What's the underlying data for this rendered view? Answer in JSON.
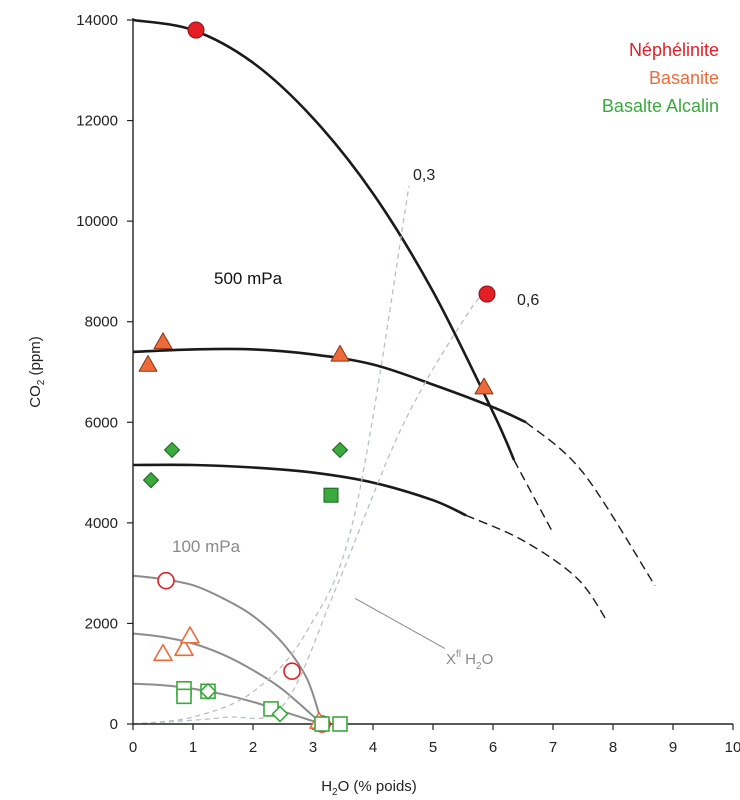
{
  "chart_data": {
    "type": "scatter",
    "xlabel_main": "H",
    "xlabel_sub": "2",
    "xlabel_rest": "O (% poids)",
    "ylabel_main": "CO",
    "ylabel_sub": "2",
    "ylabel_rest": " (ppm)",
    "xlim": [
      0,
      10
    ],
    "ylim": [
      0,
      14000
    ],
    "x_ticks": [
      0,
      1,
      2,
      3,
      4,
      5,
      6,
      7,
      8,
      9,
      10
    ],
    "y_ticks": [
      0,
      2000,
      4000,
      6000,
      8000,
      10000,
      12000,
      14000
    ],
    "grid": false,
    "legend_position": "top-right",
    "legend": [
      {
        "name": "Néphélinite",
        "color": "#e31e24"
      },
      {
        "name": "Basanite",
        "color": "#ef6a3a"
      },
      {
        "name": "Basalte Alcalin",
        "color": "#3aaa3c"
      }
    ],
    "annotations": {
      "pressure_high": "500 mPa",
      "pressure_low": "100 mPa",
      "xh2o_03": "0,3",
      "xh2o_06": "0,6",
      "xh2o_label_main": "X",
      "xh2o_label_sup": "fl",
      "xh2o_label_rest": " H",
      "xh2o_label_sub": "2",
      "xh2o_label_end": "O"
    },
    "isobars_500mPa": [
      {
        "solid": [
          [
            0,
            14000
          ],
          [
            1,
            13800
          ],
          [
            2,
            13150
          ],
          [
            3,
            12050
          ],
          [
            4,
            10550
          ],
          [
            5,
            8600
          ],
          [
            6,
            6200
          ],
          [
            6.35,
            5250
          ]
        ],
        "dashed": [
          [
            6.35,
            5250
          ],
          [
            7.0,
            3800
          ]
        ]
      },
      {
        "solid": [
          [
            0,
            7400
          ],
          [
            1,
            7450
          ],
          [
            2,
            7450
          ],
          [
            3,
            7350
          ],
          [
            4,
            7150
          ],
          [
            5,
            6750
          ],
          [
            6,
            6300
          ],
          [
            6.55,
            6000
          ]
        ],
        "dashed": [
          [
            6.55,
            6000
          ],
          [
            7.5,
            5000
          ],
          [
            8.7,
            2750
          ]
        ]
      },
      {
        "solid": [
          [
            0,
            5150
          ],
          [
            1,
            5150
          ],
          [
            2,
            5100
          ],
          [
            3,
            5000
          ],
          [
            4,
            4800
          ],
          [
            5,
            4450
          ],
          [
            5.55,
            4150
          ]
        ],
        "dashed": [
          [
            5.55,
            4150
          ],
          [
            6.5,
            3650
          ],
          [
            7.4,
            2900
          ],
          [
            7.9,
            2050
          ]
        ]
      }
    ],
    "isobars_100mPa": [
      [
        [
          0,
          2950
        ],
        [
          0.5,
          2880
        ],
        [
          1,
          2760
        ],
        [
          1.5,
          2500
        ],
        [
          2,
          2150
        ],
        [
          2.5,
          1600
        ],
        [
          2.9,
          900
        ],
        [
          3.15,
          0
        ]
      ],
      [
        [
          0,
          1800
        ],
        [
          0.5,
          1730
        ],
        [
          1,
          1600
        ],
        [
          1.5,
          1380
        ],
        [
          2,
          1070
        ],
        [
          2.5,
          680
        ],
        [
          3.15,
          0
        ]
      ],
      [
        [
          0,
          800
        ],
        [
          0.5,
          770
        ],
        [
          1,
          700
        ],
        [
          1.5,
          590
        ],
        [
          2,
          440
        ],
        [
          2.5,
          250
        ],
        [
          3.15,
          0
        ]
      ]
    ],
    "xh2o_isopleths": [
      {
        "name": "0,3",
        "points": [
          [
            0,
            0
          ],
          [
            1.0,
            140
          ],
          [
            2.0,
            640
          ],
          [
            2.9,
            1850
          ],
          [
            3.7,
            4200
          ],
          [
            4.6,
            10700
          ]
        ]
      },
      {
        "name": "0,6",
        "points": [
          [
            0,
            0
          ],
          [
            1.5,
            130
          ],
          [
            2.5,
            370
          ],
          [
            3.4,
            2750
          ],
          [
            4.5,
            5950
          ],
          [
            5.6,
            8200
          ],
          [
            6.0,
            8700
          ]
        ]
      }
    ],
    "label_pointer_line": [
      [
        3.7,
        2500
      ],
      [
        5.2,
        1500
      ]
    ],
    "series": [
      {
        "name": "Néphélinite",
        "marker": "circle",
        "filled": true,
        "points": [
          [
            1.05,
            13800
          ],
          [
            5.9,
            8550
          ]
        ]
      },
      {
        "name": "Basanite",
        "marker": "triangle",
        "filled": true,
        "points": [
          [
            0.5,
            7600
          ],
          [
            0.25,
            7150
          ],
          [
            3.45,
            7350
          ],
          [
            5.85,
            6700
          ]
        ]
      },
      {
        "name": "Basalte Alcalin",
        "marker": "diamond",
        "filled": true,
        "points": [
          [
            0.65,
            5450
          ],
          [
            0.3,
            4850
          ],
          [
            3.45,
            5450
          ]
        ]
      },
      {
        "name": "Basalte Alcalin",
        "marker": "square",
        "filled": true,
        "points": [
          [
            3.3,
            4550
          ]
        ]
      },
      {
        "name": "Néphélinite",
        "marker": "circle",
        "filled": false,
        "points": [
          [
            0.55,
            2850
          ],
          [
            2.65,
            1050
          ],
          [
            3.15,
            0
          ]
        ]
      },
      {
        "name": "Basanite",
        "marker": "triangle",
        "filled": false,
        "points": [
          [
            0.5,
            1400
          ],
          [
            0.85,
            1500
          ],
          [
            0.95,
            1750
          ],
          [
            3.1,
            50
          ]
        ]
      },
      {
        "name": "Basalte Alcalin",
        "marker": "square",
        "filled": false,
        "points": [
          [
            0.85,
            700
          ],
          [
            0.85,
            550
          ],
          [
            1.25,
            650
          ],
          [
            2.3,
            300
          ],
          [
            3.15,
            0
          ],
          [
            3.45,
            0
          ]
        ]
      },
      {
        "name": "Basalte Alcalin",
        "marker": "diamond",
        "filled": false,
        "points": [
          [
            1.25,
            650
          ],
          [
            2.45,
            200
          ]
        ]
      }
    ]
  }
}
